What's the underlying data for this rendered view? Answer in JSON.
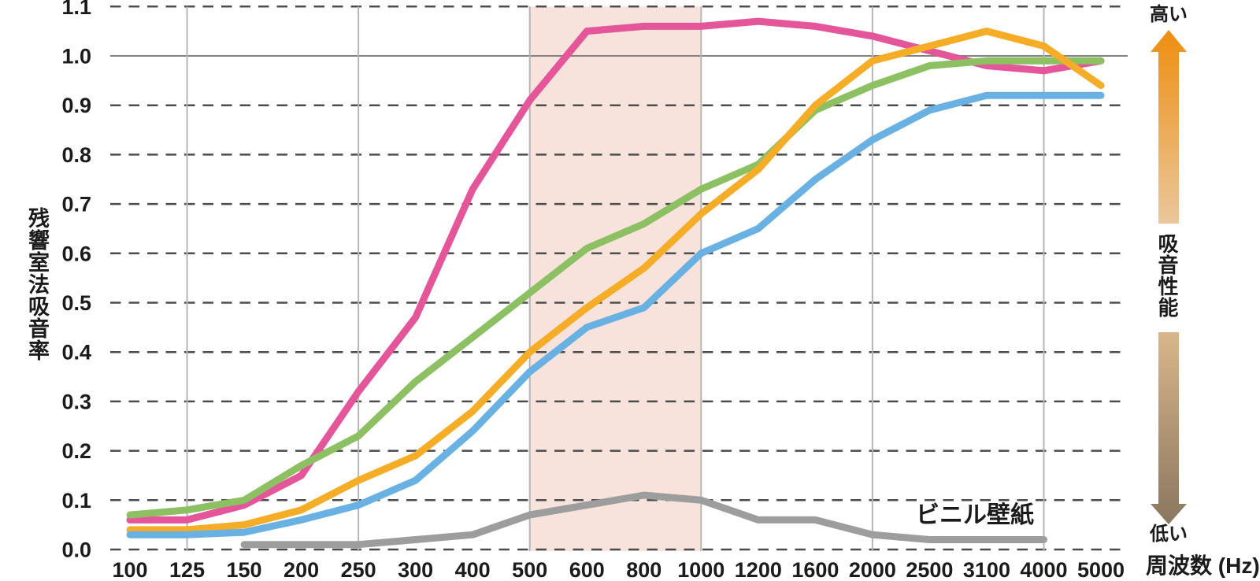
{
  "chart_data": {
    "type": "line",
    "title": "",
    "xlabel": "周波数 (Hz)",
    "ylabel": "残響室法吸音率",
    "ylim": [
      0.0,
      1.1
    ],
    "grid": "horizontal dashed + octave verticals",
    "legend_position": "inline annotation near gray line",
    "x_tick_labels": [
      "100",
      "125",
      "150",
      "200",
      "250",
      "300",
      "400",
      "500",
      "600",
      "800",
      "1000",
      "1200",
      "1600",
      "2000",
      "2500",
      "3100",
      "4000",
      "5000"
    ],
    "y_tick_labels": [
      "0.0",
      "0.1",
      "0.2",
      "0.3",
      "0.4",
      "0.5",
      "0.6",
      "0.7",
      "0.8",
      "0.9",
      "1.0",
      "1.1"
    ],
    "y_solid_reference_line": 1.0,
    "vertical_gridlines_at": [
      "125",
      "250",
      "500",
      "1000",
      "2000",
      "4000"
    ],
    "highlight_band": {
      "from": "500",
      "to": "1000",
      "fill": "#f7e3dc"
    },
    "series": [
      {
        "name": "series-pink",
        "label": "",
        "color": "#e5559a",
        "values": [
          0.06,
          0.06,
          0.09,
          0.15,
          0.32,
          0.47,
          0.73,
          0.91,
          1.05,
          1.06,
          1.06,
          1.07,
          1.06,
          1.04,
          1.01,
          0.98,
          0.97,
          0.99
        ]
      },
      {
        "name": "series-green",
        "label": "",
        "color": "#8dc063",
        "values": [
          0.07,
          0.08,
          0.1,
          0.17,
          0.23,
          0.34,
          0.43,
          0.52,
          0.61,
          0.66,
          0.73,
          0.78,
          0.89,
          0.94,
          0.98,
          0.99,
          0.99,
          0.99
        ]
      },
      {
        "name": "series-orange",
        "label": "",
        "color": "#f5ad27",
        "values": [
          0.04,
          0.04,
          0.05,
          0.08,
          0.14,
          0.19,
          0.28,
          0.4,
          0.49,
          0.57,
          0.68,
          0.77,
          0.9,
          0.99,
          1.02,
          1.05,
          1.02,
          0.94
        ]
      },
      {
        "name": "series-blue",
        "label": "",
        "color": "#69b1e2",
        "values": [
          0.03,
          0.03,
          0.035,
          0.06,
          0.09,
          0.14,
          0.24,
          0.36,
          0.45,
          0.49,
          0.6,
          0.65,
          0.75,
          0.83,
          0.89,
          0.92,
          0.92,
          0.92
        ]
      },
      {
        "name": "series-vinyl-wallpaper",
        "label": "ビニル壁紙",
        "color": "#9d9d9d",
        "values": [
          null,
          null,
          0.01,
          0.01,
          0.01,
          0.02,
          0.03,
          0.07,
          0.09,
          0.11,
          0.1,
          0.06,
          0.06,
          0.03,
          0.02,
          0.02,
          0.02,
          null
        ]
      }
    ]
  },
  "labels": {
    "y_axis_title": "残響室法吸音率",
    "x_axis_title": "周波数 (Hz)",
    "series_annotation": "ビニル壁紙",
    "performance_high": "高い",
    "performance_low": "低い",
    "performance_axis": "吸音性能"
  },
  "colors": {
    "text": "#1b1b1b",
    "grid_dashed": "#4c4c4c",
    "grid_solid_ref": "#828282",
    "grid_vertical": "#b5b5b5",
    "band_fill": "#f7e3dc",
    "up_arrow_top": "#ee8e10",
    "up_arrow_bottom": "#eac79c",
    "down_arrow_top": "#d9b68a",
    "down_arrow_bottom": "#8a7660"
  }
}
